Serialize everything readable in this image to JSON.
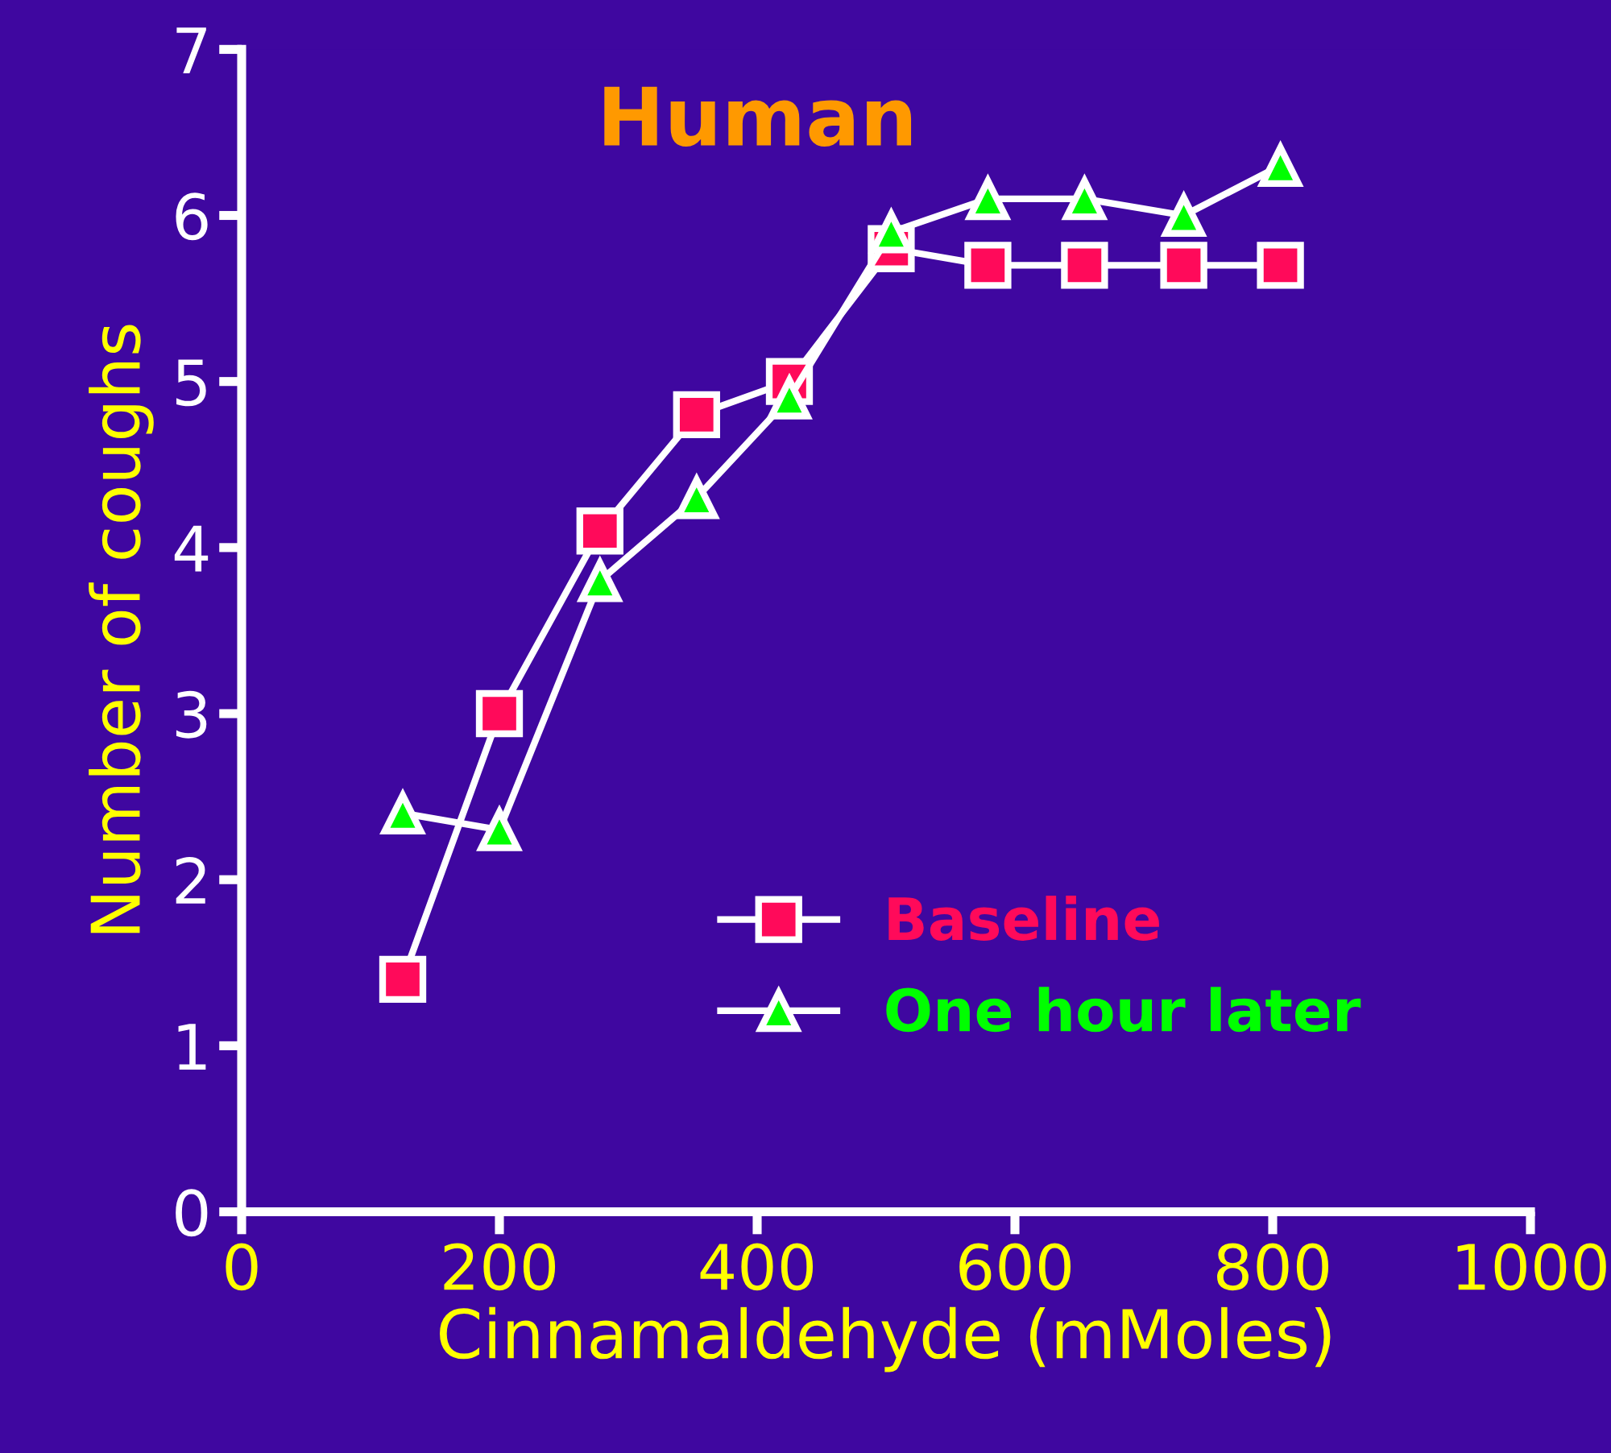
{
  "chart_data": {
    "type": "line",
    "title": "Human",
    "xlabel": "Cinnamaldehyde (mMoles)",
    "ylabel": "Number of coughs",
    "x": [
      125,
      200,
      278,
      353,
      425,
      504,
      579,
      654,
      731,
      806
    ],
    "series": [
      {
        "name": "Baseline",
        "color": "#ff0a5a",
        "marker": "square",
        "values": [
          1.4,
          3.0,
          4.1,
          4.8,
          5.0,
          5.8,
          5.7,
          5.7,
          5.7,
          5.7
        ]
      },
      {
        "name": "One hour later",
        "color": "#00ff00",
        "marker": "triangle",
        "values": [
          2.4,
          2.3,
          3.8,
          4.3,
          4.9,
          5.9,
          6.1,
          6.1,
          6.0,
          6.3
        ]
      }
    ],
    "xlim": [
      0,
      1000
    ],
    "xticks": [
      0,
      200,
      400,
      600,
      800,
      1000
    ],
    "ylim": [
      0,
      7
    ],
    "yticks": [
      0,
      1,
      2,
      3,
      4,
      5,
      6,
      7
    ],
    "grid": false,
    "legend": "bottom",
    "line_style": "solid"
  }
}
